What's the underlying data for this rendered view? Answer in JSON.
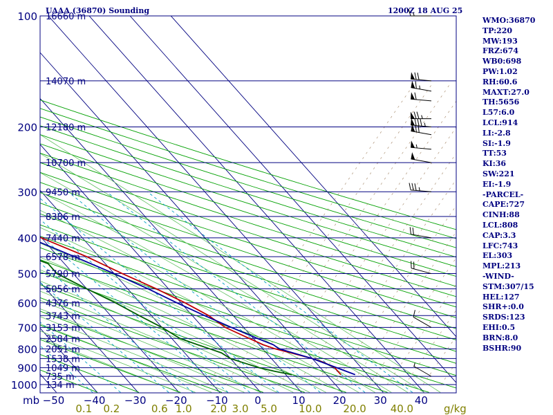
{
  "chart_data": {
    "type": "skew-t",
    "title": "UAAA (36870) Sounding",
    "valid_time": "1200Z 18 AUG 25",
    "pressure_unit_label": "mb",
    "mixing_ratio_unit_label": "g/kg",
    "pressure_levels": [
      100,
      200,
      300,
      400,
      500,
      600,
      700,
      800,
      900,
      1000
    ],
    "pressure_tick_labels": [
      "100",
      "200",
      "300",
      "400",
      "500",
      "600",
      "700",
      "800",
      "900",
      "1000"
    ],
    "temperature_ticks": [
      -50,
      -40,
      -30,
      -20,
      -10,
      0,
      10,
      20,
      30,
      40
    ],
    "temperature_tick_labels": [
      "−50",
      "−40",
      "−30",
      "−20",
      "−10",
      "0",
      "10",
      "20",
      "30",
      "40"
    ],
    "mixing_ratio_ticks": [
      0.1,
      0.2,
      0.6,
      1.0,
      2.0,
      3.0,
      5.0,
      10.0,
      20.0,
      40.0
    ],
    "mixing_ratio_tick_labels": [
      "0.1",
      "0.2",
      "0.6",
      "1.0",
      "2.0",
      "3.0",
      "5.0",
      "10.0",
      "20.0",
      "40.0"
    ],
    "height_labels": [
      {
        "p": 100,
        "text": "16660 m"
      },
      {
        "p": 150,
        "text": "14070 m"
      },
      {
        "p": 200,
        "text": "12180 m"
      },
      {
        "p": 250,
        "text": "10700 m"
      },
      {
        "p": 300,
        "text": "9450 m"
      },
      {
        "p": 350,
        "text": "8386 m"
      },
      {
        "p": 400,
        "text": "7440 m"
      },
      {
        "p": 450,
        "text": "6578 m"
      },
      {
        "p": 500,
        "text": "5790 m"
      },
      {
        "p": 550,
        "text": "5056 m"
      },
      {
        "p": 600,
        "text": "4376 m"
      },
      {
        "p": 650,
        "text": "3743 m"
      },
      {
        "p": 700,
        "text": "3153 m"
      },
      {
        "p": 750,
        "text": "2584 m"
      },
      {
        "p": 800,
        "text": "2051 m"
      },
      {
        "p": 850,
        "text": "1538 m"
      },
      {
        "p": 900,
        "text": "1049 m"
      },
      {
        "p": 950,
        "text": "735 m"
      },
      {
        "p": 1000,
        "text": "134 m"
      }
    ],
    "series": [
      {
        "name": "temperature",
        "color": "#c00000",
        "points": [
          [
            940,
            23.5
          ],
          [
            920,
            23.5
          ],
          [
            900,
            23.5
          ],
          [
            870,
            22
          ],
          [
            850,
            20
          ],
          [
            820,
            16
          ],
          [
            800,
            13
          ],
          [
            780,
            11
          ],
          [
            750,
            9
          ],
          [
            700,
            5.5
          ],
          [
            650,
            4
          ],
          [
            600,
            1
          ],
          [
            550,
            -3
          ],
          [
            500,
            -8
          ],
          [
            450,
            -13
          ],
          [
            400,
            -20
          ],
          [
            380,
            -22
          ],
          [
            350,
            -27
          ],
          [
            320,
            -34
          ],
          [
            300,
            -40
          ],
          [
            280,
            -45
          ],
          [
            260,
            -48
          ],
          [
            240,
            -51
          ],
          [
            220,
            -54
          ],
          [
            200,
            -57
          ],
          [
            180,
            -59
          ],
          [
            150,
            -61
          ],
          [
            120,
            -62
          ],
          [
            100,
            -63
          ]
        ]
      },
      {
        "name": "dewpoint",
        "color": "#006000",
        "points": [
          [
            940,
            11.5
          ],
          [
            920,
            8
          ],
          [
            900,
            5
          ],
          [
            870,
            2
          ],
          [
            850,
            0
          ],
          [
            820,
            -1
          ],
          [
            800,
            -3
          ],
          [
            780,
            -5
          ],
          [
            750,
            -8
          ],
          [
            700,
            -10
          ],
          [
            650,
            -13
          ],
          [
            600,
            -16
          ],
          [
            550,
            -20
          ],
          [
            500,
            -24
          ],
          [
            470,
            -24
          ],
          [
            450,
            -27
          ],
          [
            400,
            -35
          ],
          [
            350,
            -41
          ],
          [
            300,
            -50
          ],
          [
            270,
            -53
          ],
          [
            250,
            -55
          ],
          [
            230,
            -59
          ],
          [
            210,
            -64
          ],
          [
            200,
            -66
          ],
          [
            190,
            -67
          ],
          [
            150,
            -70
          ],
          [
            120,
            -75
          ],
          [
            100,
            -80
          ]
        ]
      },
      {
        "name": "parcel",
        "color": "#0000a0",
        "points": [
          [
            940,
            27
          ],
          [
            900,
            24
          ],
          [
            850,
            20
          ],
          [
            820,
            16.5
          ],
          [
            800,
            14
          ],
          [
            780,
            13.5
          ],
          [
            750,
            11
          ],
          [
            700,
            7
          ],
          [
            650,
            3
          ],
          [
            600,
            -1
          ],
          [
            550,
            -5
          ],
          [
            500,
            -10
          ],
          [
            450,
            -16
          ],
          [
            400,
            -23
          ],
          [
            350,
            -31
          ],
          [
            300,
            -40
          ],
          [
            250,
            -53
          ],
          [
            200,
            -68
          ],
          [
            150,
            -86
          ],
          [
            110,
            -100
          ]
        ]
      }
    ],
    "wind_barbs": [
      {
        "p": 100,
        "dir": 270,
        "spd": 15
      },
      {
        "p": 150,
        "dir": 275,
        "spd": 70
      },
      {
        "p": 160,
        "dir": 280,
        "spd": 65
      },
      {
        "p": 170,
        "dir": 275,
        "spd": 60
      },
      {
        "p": 190,
        "dir": 270,
        "spd": 75
      },
      {
        "p": 200,
        "dir": 275,
        "spd": 85
      },
      {
        "p": 210,
        "dir": 280,
        "spd": 70
      },
      {
        "p": 230,
        "dir": 275,
        "spd": 55
      },
      {
        "p": 250,
        "dir": 280,
        "spd": 50
      },
      {
        "p": 300,
        "dir": 275,
        "spd": 35
      },
      {
        "p": 400,
        "dir": 280,
        "spd": 20
      },
      {
        "p": 500,
        "dir": 285,
        "spd": 20
      },
      {
        "p": 700,
        "dir": 300,
        "spd": 10
      },
      {
        "p": 950,
        "dir": 300,
        "spd": 5
      }
    ]
  },
  "indices": [
    "WMO:36870",
    "TP:220",
    "MW:193",
    "FRZ:674",
    "WB0:698",
    "PW:1.02",
    "RH:60.6",
    "MAXT:27.0",
    "TH:5656",
    "L57:6.0",
    "LCL:914",
    "LI:-2.8",
    "SI:-1.9",
    "TT:53",
    "KI:36",
    "SW:221",
    "EI:-1.9",
    "-PARCEL-",
    "CAPE:727",
    "CINH:88",
    "LCL:808",
    "CAP:3.3",
    "LFC:743",
    "EL:303",
    "MPL:213",
    "-WIND-",
    "STM:307/15",
    "HEL:127",
    "SHR+:0.0",
    "SRDS:123",
    "EHI:0.5",
    "BRN:8.0",
    "BSHR:90"
  ],
  "colors": {
    "isobar": "#000080",
    "isotherm": "#000080",
    "dry_adiabat": "#00a000",
    "moist_adiabat": "#60c060",
    "mixing_ratio": "#00a0c0",
    "axis_text": "#000080",
    "mixing_text": "#808000",
    "wind": "#000000"
  }
}
